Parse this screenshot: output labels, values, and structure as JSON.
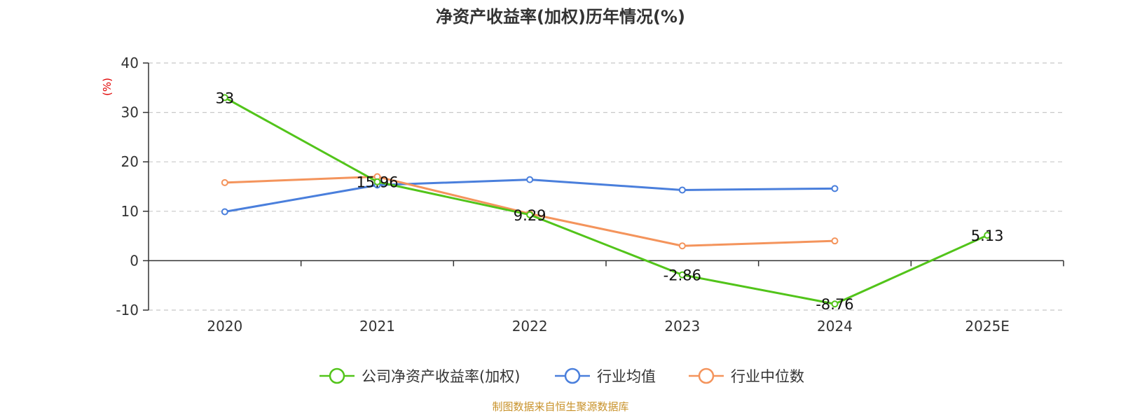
{
  "chart_data": {
    "type": "line",
    "title": "净资产收益率(加权)历年情况(%)",
    "ylabel": "(%)",
    "xlabel": "",
    "categories": [
      "2020",
      "2021",
      "2022",
      "2023",
      "2024",
      "2025E"
    ],
    "ylim": [
      -10,
      40
    ],
    "yticks": [
      -10,
      0,
      10,
      20,
      30,
      40
    ],
    "grid": true,
    "legend_position": "bottom-center",
    "series": [
      {
        "name": "公司净资产收益率(加权)",
        "color": "#52c41a",
        "values": [
          33,
          15.96,
          9.29,
          -2.86,
          -8.76,
          5.13
        ],
        "labels": [
          "33",
          "15.96",
          "9.29",
          "-2.86",
          "-8.76",
          "5.13"
        ]
      },
      {
        "name": "行业均值",
        "color": "#4a7fdc",
        "values": [
          9.9,
          15.3,
          16.4,
          14.3,
          14.6,
          null
        ]
      },
      {
        "name": "行业中位数",
        "color": "#f4945c",
        "values": [
          15.8,
          17.0,
          9.5,
          3.0,
          4.0,
          null
        ]
      }
    ],
    "source": "制图数据来自恒生聚源数据库"
  }
}
